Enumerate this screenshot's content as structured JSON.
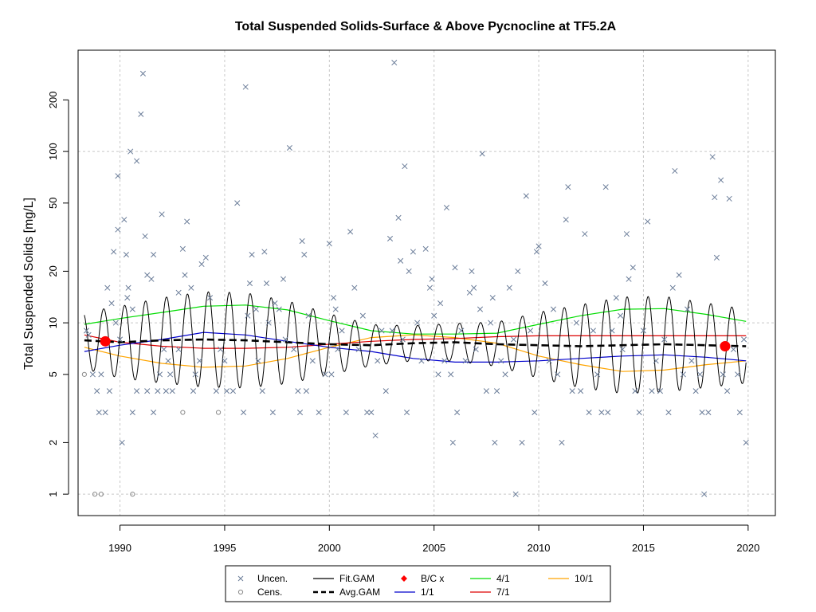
{
  "chart_data": {
    "type": "scatter",
    "title": "Total Suspended Solids-Surface & Above Pycnocline at TF5.2A",
    "ylabel": "Total Suspended Solids [mg/L]",
    "xlabel": "",
    "xlim": [
      1988.0,
      2021.3
    ],
    "ylim": [
      0.75,
      390
    ],
    "y_scale": "log",
    "x_ticks": [
      1990,
      1995,
      2000,
      2005,
      2010,
      2015,
      2020
    ],
    "x_tick_labels": [
      "1990",
      "1995",
      "2000",
      "2005",
      "2010",
      "2015",
      "2020"
    ],
    "y_ticks": [
      1,
      2,
      5,
      10,
      20,
      50,
      100,
      200
    ],
    "y_tick_labels": [
      "1",
      "2",
      "5",
      "10",
      "20",
      "50",
      "100",
      "200"
    ],
    "grid": true,
    "legend_position": "bottom",
    "colors": {
      "uncensored": "#6b7d99",
      "censored": "#8a8a8a",
      "fit_gam": "#000000",
      "avg_gam": "#000000",
      "bc_x": "#ff0000",
      "season_1_1": "#0000cc",
      "season_4_1": "#00dd00",
      "season_7_1": "#dd0000",
      "season_10_1": "#ffa500",
      "grid": "#c8c8c8"
    },
    "legend": [
      {
        "label": "Uncen.",
        "symbol": "x",
        "color": "#6b7d99"
      },
      {
        "label": "Cens.",
        "symbol": "o",
        "color": "#8a8a8a"
      },
      {
        "label": "Fit.GAM",
        "symbol": "line",
        "color": "#000000"
      },
      {
        "label": "Avg.GAM",
        "symbol": "dash",
        "color": "#000000"
      },
      {
        "label": "B/C x",
        "symbol": "diamond",
        "color": "#ff0000"
      },
      {
        "label": "1/1",
        "symbol": "line",
        "color": "#0000cc"
      },
      {
        "label": "4/1",
        "symbol": "line",
        "color": "#00dd00"
      },
      {
        "label": "7/1",
        "symbol": "line",
        "color": "#dd0000"
      },
      {
        "label": "10/1",
        "symbol": "line",
        "color": "#ffa500"
      }
    ],
    "bc_points": [
      [
        1989.3,
        7.8
      ],
      [
        2018.9,
        7.3
      ]
    ],
    "avg_gam": [
      [
        1988.3,
        7.9
      ],
      [
        1990.0,
        7.7
      ],
      [
        1992.0,
        7.9
      ],
      [
        1994.0,
        8.0
      ],
      [
        1996.0,
        7.9
      ],
      [
        1998.0,
        7.7
      ],
      [
        2000.0,
        7.5
      ],
      [
        2002.0,
        7.4
      ],
      [
        2004.0,
        7.6
      ],
      [
        2006.0,
        7.7
      ],
      [
        2008.0,
        7.5
      ],
      [
        2010.0,
        7.4
      ],
      [
        2012.0,
        7.3
      ],
      [
        2014.0,
        7.4
      ],
      [
        2016.0,
        7.5
      ],
      [
        2018.0,
        7.4
      ],
      [
        2019.9,
        7.3
      ]
    ],
    "season_1_1": [
      [
        1988.3,
        6.8
      ],
      [
        1990.0,
        7.4
      ],
      [
        1992.0,
        8.0
      ],
      [
        1994.0,
        8.8
      ],
      [
        1996.0,
        8.5
      ],
      [
        1998.0,
        7.8
      ],
      [
        2000.0,
        7.2
      ],
      [
        2002.0,
        6.8
      ],
      [
        2004.0,
        6.2
      ],
      [
        2006.0,
        5.9
      ],
      [
        2008.0,
        5.9
      ],
      [
        2010.0,
        6.0
      ],
      [
        2012.0,
        6.2
      ],
      [
        2014.0,
        6.4
      ],
      [
        2016.0,
        6.5
      ],
      [
        2018.0,
        6.3
      ],
      [
        2019.9,
        6.0
      ]
    ],
    "season_4_1": [
      [
        1988.3,
        9.8
      ],
      [
        1990.0,
        10.6
      ],
      [
        1992.0,
        11.5
      ],
      [
        1994.0,
        12.5
      ],
      [
        1996.0,
        12.7
      ],
      [
        1998.0,
        11.9
      ],
      [
        2000.0,
        10.3
      ],
      [
        2002.0,
        9.0
      ],
      [
        2004.0,
        8.6
      ],
      [
        2006.0,
        8.6
      ],
      [
        2008.0,
        8.7
      ],
      [
        2010.0,
        9.8
      ],
      [
        2012.0,
        11.0
      ],
      [
        2014.0,
        12.0
      ],
      [
        2016.0,
        12.1
      ],
      [
        2018.0,
        11.2
      ],
      [
        2019.9,
        10.2
      ]
    ],
    "season_7_1": [
      [
        1988.3,
        8.5
      ],
      [
        1990.0,
        7.7
      ],
      [
        1992.0,
        7.3
      ],
      [
        1994.0,
        7.1
      ],
      [
        1996.0,
        7.1
      ],
      [
        1998.0,
        7.2
      ],
      [
        2000.0,
        7.5
      ],
      [
        2002.0,
        7.8
      ],
      [
        2004.0,
        8.0
      ],
      [
        2006.0,
        8.1
      ],
      [
        2008.0,
        8.3
      ],
      [
        2010.0,
        8.4
      ],
      [
        2012.0,
        8.4
      ],
      [
        2014.0,
        8.4
      ],
      [
        2016.0,
        8.4
      ],
      [
        2018.0,
        8.4
      ],
      [
        2019.9,
        8.4
      ]
    ],
    "season_10_1": [
      [
        1988.3,
        7.2
      ],
      [
        1990.0,
        6.4
      ],
      [
        1992.0,
        5.8
      ],
      [
        1994.0,
        5.5
      ],
      [
        1996.0,
        5.6
      ],
      [
        1998.0,
        6.2
      ],
      [
        2000.0,
        7.2
      ],
      [
        2002.0,
        8.2
      ],
      [
        2004.0,
        8.5
      ],
      [
        2006.0,
        8.2
      ],
      [
        2008.0,
        7.6
      ],
      [
        2010.0,
        6.4
      ],
      [
        2012.0,
        5.7
      ],
      [
        2014.0,
        5.2
      ],
      [
        2016.0,
        5.3
      ],
      [
        2018.0,
        5.7
      ],
      [
        2019.9,
        6.0
      ]
    ],
    "fit_gam": {
      "start": 1988.3,
      "end": 2019.9,
      "center": "avg_gam",
      "peak": "season_4_1",
      "trough": "season_10_1",
      "wet_low": "season_1_1",
      "summer": "season_7_1"
    },
    "uncensored": [
      [
        1988.4,
        9
      ],
      [
        1988.5,
        8.5
      ],
      [
        1988.7,
        5
      ],
      [
        1988.9,
        4
      ],
      [
        1989.0,
        3
      ],
      [
        1989.1,
        5
      ],
      [
        1989.3,
        3
      ],
      [
        1989.4,
        16
      ],
      [
        1989.5,
        4
      ],
      [
        1989.6,
        13
      ],
      [
        1989.7,
        26
      ],
      [
        1989.8,
        10
      ],
      [
        1989.9,
        35
      ],
      [
        1989.9,
        72
      ],
      [
        1990.0,
        8
      ],
      [
        1990.1,
        2
      ],
      [
        1990.2,
        40
      ],
      [
        1990.3,
        25
      ],
      [
        1990.35,
        14
      ],
      [
        1990.4,
        16
      ],
      [
        1990.5,
        100
      ],
      [
        1990.6,
        12
      ],
      [
        1990.6,
        3
      ],
      [
        1990.8,
        4
      ],
      [
        1990.8,
        88
      ],
      [
        1991.0,
        165
      ],
      [
        1991.1,
        285
      ],
      [
        1991.2,
        32
      ],
      [
        1991.3,
        19
      ],
      [
        1991.3,
        4
      ],
      [
        1991.5,
        18
      ],
      [
        1991.6,
        25
      ],
      [
        1991.6,
        3
      ],
      [
        1991.8,
        4
      ],
      [
        1991.9,
        5
      ],
      [
        1992.0,
        43
      ],
      [
        1992.1,
        7
      ],
      [
        1992.2,
        4
      ],
      [
        1992.3,
        6
      ],
      [
        1992.4,
        5
      ],
      [
        1992.5,
        4
      ],
      [
        1992.8,
        7
      ],
      [
        1992.8,
        15
      ],
      [
        1993.0,
        27
      ],
      [
        1993.1,
        19
      ],
      [
        1993.2,
        39
      ],
      [
        1993.4,
        16
      ],
      [
        1993.5,
        4
      ],
      [
        1993.6,
        5
      ],
      [
        1993.8,
        6
      ],
      [
        1993.9,
        22
      ],
      [
        1994.1,
        24
      ],
      [
        1994.3,
        14
      ],
      [
        1994.6,
        4
      ],
      [
        1994.8,
        7
      ],
      [
        1995.0,
        6
      ],
      [
        1995.1,
        4
      ],
      [
        1995.4,
        4
      ],
      [
        1995.6,
        50
      ],
      [
        1995.9,
        3
      ],
      [
        1996.0,
        238
      ],
      [
        1996.1,
        11
      ],
      [
        1996.2,
        17
      ],
      [
        1996.3,
        25
      ],
      [
        1996.5,
        12
      ],
      [
        1996.6,
        6
      ],
      [
        1996.8,
        4
      ],
      [
        1996.9,
        26
      ],
      [
        1997.0,
        17
      ],
      [
        1997.1,
        10
      ],
      [
        1997.3,
        3
      ],
      [
        1997.4,
        13
      ],
      [
        1997.6,
        12
      ],
      [
        1997.8,
        18
      ],
      [
        1997.9,
        8
      ],
      [
        1998.1,
        105
      ],
      [
        1998.3,
        7
      ],
      [
        1998.5,
        4
      ],
      [
        1998.6,
        3
      ],
      [
        1998.7,
        30
      ],
      [
        1998.8,
        25
      ],
      [
        1998.9,
        4
      ],
      [
        1999.0,
        11
      ],
      [
        1999.2,
        6
      ],
      [
        1999.5,
        3
      ],
      [
        1999.8,
        5
      ],
      [
        2000.0,
        29
      ],
      [
        2000.1,
        5
      ],
      [
        2000.2,
        14
      ],
      [
        2000.3,
        12
      ],
      [
        2000.4,
        7
      ],
      [
        2000.6,
        9
      ],
      [
        2000.8,
        3
      ],
      [
        2001.0,
        34
      ],
      [
        2001.2,
        16
      ],
      [
        2001.4,
        7
      ],
      [
        2001.6,
        11
      ],
      [
        2001.8,
        3
      ],
      [
        2002.0,
        3
      ],
      [
        2002.2,
        2.2
      ],
      [
        2002.3,
        6
      ],
      [
        2002.5,
        9
      ],
      [
        2002.7,
        4
      ],
      [
        2002.9,
        31
      ],
      [
        2003.0,
        9
      ],
      [
        2003.1,
        330
      ],
      [
        2003.3,
        41
      ],
      [
        2003.4,
        23
      ],
      [
        2003.5,
        8
      ],
      [
        2003.6,
        82
      ],
      [
        2003.7,
        3
      ],
      [
        2003.8,
        20
      ],
      [
        2004.0,
        26
      ],
      [
        2004.2,
        10
      ],
      [
        2004.4,
        6
      ],
      [
        2004.6,
        27
      ],
      [
        2004.8,
        16
      ],
      [
        2004.9,
        18
      ],
      [
        2005.0,
        11
      ],
      [
        2005.2,
        5
      ],
      [
        2005.3,
        13
      ],
      [
        2005.5,
        6
      ],
      [
        2005.6,
        47
      ],
      [
        2005.8,
        5
      ],
      [
        2005.9,
        2
      ],
      [
        2006.0,
        21
      ],
      [
        2006.1,
        3
      ],
      [
        2006.3,
        9
      ],
      [
        2006.5,
        6
      ],
      [
        2006.7,
        15
      ],
      [
        2006.8,
        20
      ],
      [
        2006.9,
        16
      ],
      [
        2007.0,
        7
      ],
      [
        2007.2,
        12
      ],
      [
        2007.3,
        97
      ],
      [
        2007.5,
        4
      ],
      [
        2007.7,
        10
      ],
      [
        2007.8,
        14
      ],
      [
        2007.9,
        2
      ],
      [
        2008.0,
        4
      ],
      [
        2008.2,
        6
      ],
      [
        2008.4,
        5
      ],
      [
        2008.6,
        16
      ],
      [
        2008.8,
        8
      ],
      [
        2008.9,
        1
      ],
      [
        2009.0,
        20
      ],
      [
        2009.2,
        2
      ],
      [
        2009.4,
        55
      ],
      [
        2009.6,
        9
      ],
      [
        2009.8,
        3
      ],
      [
        2009.9,
        26
      ],
      [
        2010.0,
        28
      ],
      [
        2010.3,
        17
      ],
      [
        2010.5,
        6
      ],
      [
        2010.7,
        12
      ],
      [
        2010.9,
        5
      ],
      [
        2011.1,
        2
      ],
      [
        2011.3,
        40
      ],
      [
        2011.4,
        62
      ],
      [
        2011.6,
        4
      ],
      [
        2011.8,
        10
      ],
      [
        2012.0,
        4
      ],
      [
        2012.2,
        33
      ],
      [
        2012.4,
        3
      ],
      [
        2012.6,
        9
      ],
      [
        2012.8,
        5
      ],
      [
        2013.0,
        3
      ],
      [
        2013.2,
        62
      ],
      [
        2013.3,
        3
      ],
      [
        2013.5,
        9
      ],
      [
        2013.7,
        14
      ],
      [
        2013.9,
        11
      ],
      [
        2014.0,
        7
      ],
      [
        2014.2,
        33
      ],
      [
        2014.3,
        18
      ],
      [
        2014.5,
        21
      ],
      [
        2014.6,
        4
      ],
      [
        2014.8,
        3
      ],
      [
        2015.0,
        9
      ],
      [
        2015.2,
        39
      ],
      [
        2015.4,
        4
      ],
      [
        2015.6,
        6
      ],
      [
        2015.8,
        4
      ],
      [
        2016.0,
        8
      ],
      [
        2016.2,
        3
      ],
      [
        2016.4,
        16
      ],
      [
        2016.5,
        77
      ],
      [
        2016.7,
        19
      ],
      [
        2016.9,
        5
      ],
      [
        2017.1,
        12
      ],
      [
        2017.3,
        6
      ],
      [
        2017.5,
        4
      ],
      [
        2017.7,
        5
      ],
      [
        2017.8,
        3
      ],
      [
        2017.9,
        1
      ],
      [
        2018.1,
        3
      ],
      [
        2018.3,
        93
      ],
      [
        2018.4,
        54
      ],
      [
        2018.5,
        24
      ],
      [
        2018.7,
        68
      ],
      [
        2018.8,
        5
      ],
      [
        2019.0,
        4
      ],
      [
        2019.1,
        53
      ],
      [
        2019.3,
        7
      ],
      [
        2019.5,
        5
      ],
      [
        2019.6,
        3
      ],
      [
        2019.8,
        8
      ],
      [
        2019.9,
        2
      ]
    ],
    "censored": [
      [
        1988.8,
        1
      ],
      [
        1989.1,
        1
      ],
      [
        1990.6,
        1
      ],
      [
        1993.0,
        3
      ],
      [
        1994.7,
        3
      ],
      [
        1988.3,
        5
      ]
    ]
  }
}
